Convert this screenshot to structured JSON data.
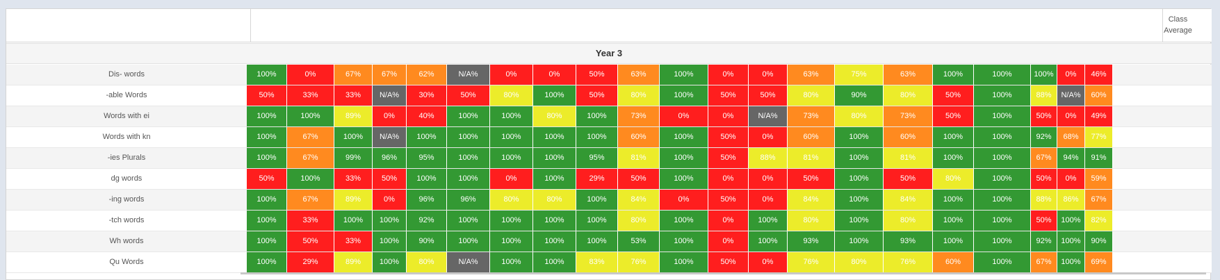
{
  "header": {
    "class_average_line1": "Class",
    "class_average_line2": "Average"
  },
  "year_label": "Year 3",
  "colors": {
    "green": "#339933",
    "red": "#ff1e1e",
    "orange": "#ff8a1f",
    "yellow": "#ecec2a",
    "grey": "#666666"
  },
  "rows": [
    {
      "label": "Dis- words",
      "cells": [
        "100%",
        "0%",
        "67%",
        "67%",
        "62%",
        "N/A%",
        "0%",
        "0%",
        "50%",
        "63%",
        "100%",
        "0%",
        "0%",
        "63%",
        "75%",
        "63%",
        "100%",
        "100%",
        "100%",
        "0%",
        "46%"
      ]
    },
    {
      "label": "-able Words",
      "cells": [
        "50%",
        "33%",
        "33%",
        "N/A%",
        "30%",
        "50%",
        "80%",
        "100%",
        "50%",
        "80%",
        "100%",
        "50%",
        "50%",
        "80%",
        "90%",
        "80%",
        "50%",
        "100%",
        "88%",
        "N/A%",
        "60%"
      ]
    },
    {
      "label": "Words with ei",
      "cells": [
        "100%",
        "100%",
        "89%",
        "0%",
        "40%",
        "100%",
        "100%",
        "80%",
        "100%",
        "73%",
        "0%",
        "0%",
        "N/A%",
        "73%",
        "80%",
        "73%",
        "50%",
        "100%",
        "50%",
        "0%",
        "49%"
      ]
    },
    {
      "label": "Words with kn",
      "cells": [
        "100%",
        "67%",
        "100%",
        "N/A%",
        "100%",
        "100%",
        "100%",
        "100%",
        "100%",
        "60%",
        "100%",
        "50%",
        "0%",
        "60%",
        "100%",
        "60%",
        "100%",
        "100%",
        "92%",
        "68%",
        "77%"
      ]
    },
    {
      "label": "-ies Plurals",
      "cells": [
        "100%",
        "67%",
        "99%",
        "96%",
        "95%",
        "100%",
        "100%",
        "100%",
        "95%",
        "81%",
        "100%",
        "50%",
        "88%",
        "81%",
        "100%",
        "81%",
        "100%",
        "100%",
        "67%",
        "94%",
        "91%"
      ]
    },
    {
      "label": "dg words",
      "cells": [
        "50%",
        "100%",
        "33%",
        "50%",
        "100%",
        "100%",
        "0%",
        "100%",
        "29%",
        "50%",
        "100%",
        "0%",
        "0%",
        "50%",
        "100%",
        "50%",
        "80%",
        "100%",
        "50%",
        "0%",
        "59%"
      ]
    },
    {
      "label": "-ing words",
      "cells": [
        "100%",
        "67%",
        "89%",
        "0%",
        "96%",
        "96%",
        "80%",
        "80%",
        "100%",
        "84%",
        "0%",
        "50%",
        "0%",
        "84%",
        "100%",
        "84%",
        "100%",
        "100%",
        "88%",
        "86%",
        "67%"
      ]
    },
    {
      "label": "-tch words",
      "cells": [
        "100%",
        "33%",
        "100%",
        "100%",
        "92%",
        "100%",
        "100%",
        "100%",
        "100%",
        "80%",
        "100%",
        "0%",
        "100%",
        "80%",
        "100%",
        "80%",
        "100%",
        "100%",
        "50%",
        "100%",
        "82%"
      ]
    },
    {
      "label": "Wh words",
      "cells": [
        "100%",
        "50%",
        "33%",
        "100%",
        "90%",
        "100%",
        "100%",
        "100%",
        "100%",
        "53%",
        "100%",
        "0%",
        "100%",
        "93%",
        "100%",
        "93%",
        "100%",
        "100%",
        "92%",
        "100%",
        "90%"
      ]
    },
    {
      "label": "Qu Words",
      "cells": [
        "100%",
        "29%",
        "89%",
        "100%",
        "80%",
        "N/A%",
        "100%",
        "100%",
        "83%",
        "76%",
        "100%",
        "50%",
        "0%",
        "76%",
        "80%",
        "76%",
        "60%",
        "100%",
        "67%",
        "100%",
        "69%"
      ]
    }
  ],
  "row_colors": [
    [
      "g",
      "r",
      "o",
      "o",
      "o",
      "n",
      "r",
      "r",
      "r",
      "o",
      "g",
      "r",
      "r",
      "o",
      "y",
      "o",
      "g",
      "g",
      "g",
      "r",
      "r"
    ],
    [
      "r",
      "r",
      "r",
      "n",
      "r",
      "r",
      "y",
      "g",
      "r",
      "y",
      "g",
      "r",
      "r",
      "y",
      "g",
      "y",
      "r",
      "g",
      "y",
      "n",
      "o"
    ],
    [
      "g",
      "g",
      "y",
      "r",
      "r",
      "g",
      "g",
      "y",
      "g",
      "o",
      "r",
      "r",
      "n",
      "o",
      "y",
      "o",
      "r",
      "g",
      "r",
      "r",
      "r"
    ],
    [
      "g",
      "o",
      "g",
      "n",
      "g",
      "g",
      "g",
      "g",
      "g",
      "o",
      "g",
      "r",
      "r",
      "o",
      "g",
      "o",
      "g",
      "g",
      "g",
      "o",
      "y"
    ],
    [
      "g",
      "o",
      "g",
      "g",
      "g",
      "g",
      "g",
      "g",
      "g",
      "y",
      "g",
      "r",
      "y",
      "y",
      "g",
      "y",
      "g",
      "g",
      "o",
      "g",
      "g"
    ],
    [
      "r",
      "g",
      "r",
      "r",
      "g",
      "g",
      "r",
      "g",
      "r",
      "r",
      "g",
      "r",
      "r",
      "r",
      "g",
      "r",
      "y",
      "g",
      "r",
      "r",
      "o"
    ],
    [
      "g",
      "o",
      "y",
      "r",
      "g",
      "g",
      "y",
      "y",
      "g",
      "y",
      "r",
      "r",
      "r",
      "y",
      "g",
      "y",
      "g",
      "g",
      "y",
      "y",
      "o"
    ],
    [
      "g",
      "r",
      "g",
      "g",
      "g",
      "g",
      "g",
      "g",
      "g",
      "y",
      "g",
      "r",
      "g",
      "y",
      "g",
      "y",
      "g",
      "g",
      "r",
      "g",
      "y"
    ],
    [
      "g",
      "r",
      "r",
      "g",
      "g",
      "g",
      "g",
      "g",
      "g",
      "g",
      "g",
      "r",
      "g",
      "g",
      "g",
      "g",
      "g",
      "g",
      "g",
      "g",
      "g"
    ],
    [
      "g",
      "r",
      "y",
      "g",
      "y",
      "n",
      "g",
      "g",
      "y",
      "y",
      "g",
      "r",
      "r",
      "y",
      "y",
      "y",
      "o",
      "g",
      "o",
      "g",
      "o"
    ]
  ]
}
